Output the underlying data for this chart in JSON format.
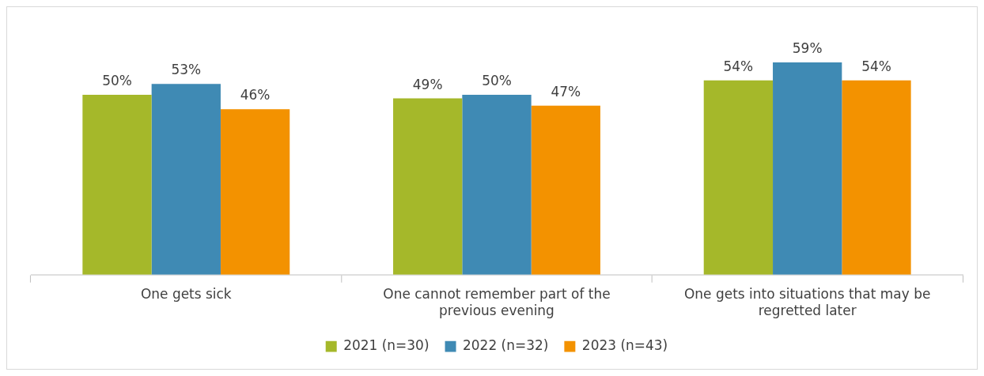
{
  "chart_data": {
    "type": "bar",
    "categories": [
      "One gets sick",
      "One cannot remember part of the previous evening",
      "One gets into situations that may be regretted later"
    ],
    "series": [
      {
        "name": "2021 (n=30)",
        "color": "#a5b82a",
        "values": [
          50,
          49,
          54
        ],
        "value_labels": [
          "50%",
          "49%",
          "54%"
        ]
      },
      {
        "name": "2022 (n=32)",
        "color": "#3f8ab4",
        "values": [
          53,
          50,
          59
        ],
        "value_labels": [
          "53%",
          "50%",
          "59%"
        ]
      },
      {
        "name": "2023 (n=43)",
        "color": "#f39200",
        "values": [
          46,
          47,
          54
        ],
        "value_labels": [
          "46%",
          "47%",
          "54%"
        ]
      }
    ],
    "tick_labels": "x",
    "grid": false,
    "legend": "bottom"
  }
}
